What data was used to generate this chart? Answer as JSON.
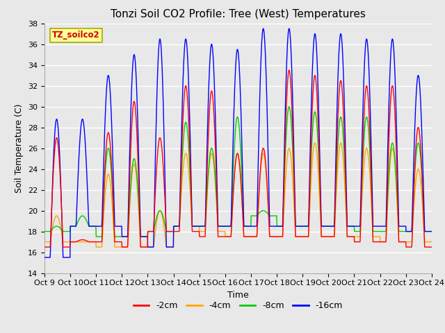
{
  "title": "Tonzi Soil CO2 Profile: Tree (West) Temperatures",
  "xlabel": "Time",
  "ylabel": "Soil Temperature (C)",
  "ylim": [
    14,
    38
  ],
  "legend_label": "TZ_soilco2",
  "series_labels": [
    "-2cm",
    "-4cm",
    "-8cm",
    "-16cm"
  ],
  "series_colors": [
    "#ff0000",
    "#ffa500",
    "#00cc00",
    "#0000ff"
  ],
  "x_tick_labels": [
    "Oct 9",
    "Oct 10",
    "Oct 11",
    "Oct 12",
    "Oct 13",
    "Oct 14",
    "Oct 15",
    "Oct 16",
    "Oct 17",
    "Oct 18",
    "Oct 19",
    "Oct 20",
    "Oct 21",
    "Oct 22",
    "Oct 23",
    "Oct 24"
  ],
  "background_color": "#e8e8e8",
  "plot_bg_color": "#e8e8e8",
  "grid_color": "#ffffff",
  "title_fontsize": 11,
  "axis_label_fontsize": 9,
  "tick_fontsize": 8,
  "legend_box_color": "#ffff99",
  "legend_text_color": "#cc0000",
  "n_days": 15,
  "samples_per_day": 96,
  "day_peaks_2cm": [
    27.0,
    17.2,
    27.5,
    30.5,
    27.0,
    32.0,
    31.5,
    25.5,
    26.0,
    33.5,
    33.0,
    32.5,
    32.0,
    32.0,
    28.0
  ],
  "day_peaks_4cm": [
    19.5,
    17.0,
    23.5,
    24.5,
    20.0,
    25.5,
    25.5,
    25.5,
    25.5,
    26.0,
    26.5,
    26.5,
    26.0,
    26.0,
    24.0
  ],
  "day_peaks_8cm": [
    18.5,
    19.5,
    26.0,
    25.0,
    20.0,
    28.5,
    26.0,
    29.0,
    20.0,
    30.0,
    29.5,
    29.0,
    29.0,
    26.5,
    26.5
  ],
  "day_peaks_16cm": [
    28.8,
    28.8,
    33.0,
    35.0,
    36.5,
    36.5,
    36.0,
    35.5,
    37.5,
    37.5,
    37.0,
    37.0,
    36.5,
    36.5,
    33.0
  ],
  "day_mins_2cm": [
    16.5,
    17.0,
    17.0,
    16.5,
    18.0,
    18.0,
    17.5,
    17.5,
    17.5,
    17.5,
    17.5,
    17.5,
    17.0,
    17.0,
    16.5
  ],
  "day_mins_4cm": [
    17.0,
    17.0,
    16.5,
    16.5,
    16.5,
    18.5,
    18.0,
    17.5,
    17.5,
    17.5,
    17.5,
    17.5,
    17.5,
    17.0,
    17.0
  ],
  "day_mins_8cm": [
    18.0,
    18.5,
    17.5,
    17.5,
    18.0,
    18.5,
    18.5,
    18.5,
    19.5,
    18.5,
    18.5,
    18.5,
    18.0,
    18.0,
    18.0
  ],
  "day_mins_16cm": [
    15.5,
    18.5,
    18.5,
    17.5,
    16.5,
    18.5,
    18.5,
    18.5,
    18.5,
    18.5,
    18.5,
    18.5,
    18.5,
    18.5,
    18.0
  ]
}
